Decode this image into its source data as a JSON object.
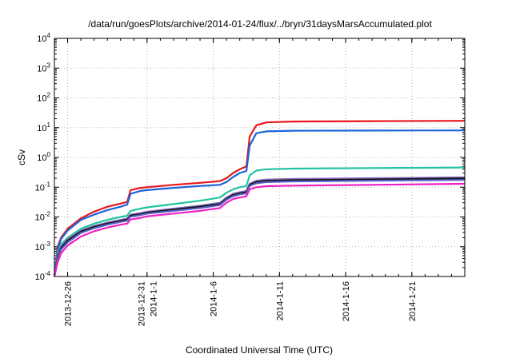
{
  "chart_data": {
    "type": "line",
    "title": "/data/run/goesPlots/archive/2014-01-24/flux/../bryn/31daysMarsAccumulated.plot",
    "xlabel": "Coordinated Universal Time (UTC)",
    "ylabel": "cSv",
    "yscale": "log",
    "ylim": [
      0.0001,
      10000
    ],
    "xlim": [
      "2013-12-25",
      "2014-01-25"
    ],
    "grid": true,
    "y_ticks": [
      {
        "value": 0.0001,
        "base": "10",
        "exp": "-4"
      },
      {
        "value": 0.001,
        "base": "10",
        "exp": "-3"
      },
      {
        "value": 0.01,
        "base": "10",
        "exp": "-2"
      },
      {
        "value": 0.1,
        "base": "10",
        "exp": "-1"
      },
      {
        "value": 1,
        "base": "10",
        "exp": "0"
      },
      {
        "value": 10,
        "base": "10",
        "exp": "1"
      },
      {
        "value": 100,
        "base": "10",
        "exp": "2"
      },
      {
        "value": 1000,
        "base": "10",
        "exp": "3"
      },
      {
        "value": 10000,
        "base": "10",
        "exp": "4"
      }
    ],
    "x_ticks": [
      {
        "value": "2013-12-26",
        "lines": [
          "2013-12-26"
        ]
      },
      {
        "value": "2014-01-01",
        "lines": [
          "2013-12-31",
          "2014-1-1"
        ]
      },
      {
        "value": "2014-01-06",
        "lines": [
          "2014-1-6"
        ]
      },
      {
        "value": "2014-01-11",
        "lines": [
          "2014-1-11"
        ]
      },
      {
        "value": "2014-01-16",
        "lines": [
          "2014-1-16"
        ]
      },
      {
        "value": "2014-01-21",
        "lines": [
          "2014-1-21"
        ]
      }
    ],
    "series": [
      {
        "color": "#e8161b",
        "points": [
          [
            "2013-12-25",
            0.0001
          ],
          [
            "2013-12-25 06:00",
            0.001
          ],
          [
            "2013-12-25 12:00",
            0.002
          ],
          [
            "2013-12-26",
            0.004
          ],
          [
            "2013-12-27",
            0.009
          ],
          [
            "2013-12-28",
            0.015
          ],
          [
            "2013-12-29",
            0.022
          ],
          [
            "2013-12-30",
            0.028
          ],
          [
            "2013-12-30 12:00",
            0.032
          ],
          [
            "2013-12-30 18:00",
            0.08
          ],
          [
            "2013-12-31 12:00",
            0.095
          ],
          [
            "2014-01-01",
            0.1
          ],
          [
            "2014-01-03",
            0.12
          ],
          [
            "2014-01-05",
            0.14
          ],
          [
            "2014-01-06 12:00",
            0.16
          ],
          [
            "2014-01-07",
            0.2
          ],
          [
            "2014-01-07 12:00",
            0.3
          ],
          [
            "2014-01-08",
            0.4
          ],
          [
            "2014-01-08 12:00",
            0.5
          ],
          [
            "2014-01-08 18:00",
            5.0
          ],
          [
            "2014-01-09 06:00",
            12.0
          ],
          [
            "2014-01-10",
            15.0
          ],
          [
            "2014-01-12",
            16.0
          ],
          [
            "2014-01-18",
            16.5
          ],
          [
            "2014-01-25",
            17.0
          ]
        ]
      },
      {
        "color": "#1a63d8",
        "points": [
          [
            "2013-12-25",
            0.0001
          ],
          [
            "2013-12-25 06:00",
            0.0008
          ],
          [
            "2013-12-25 12:00",
            0.0018
          ],
          [
            "2013-12-26",
            0.0035
          ],
          [
            "2013-12-27",
            0.008
          ],
          [
            "2013-12-28",
            0.012
          ],
          [
            "2013-12-29",
            0.017
          ],
          [
            "2013-12-30",
            0.022
          ],
          [
            "2013-12-30 12:00",
            0.026
          ],
          [
            "2013-12-30 18:00",
            0.06
          ],
          [
            "2013-12-31 12:00",
            0.075
          ],
          [
            "2014-01-01",
            0.08
          ],
          [
            "2014-01-03",
            0.095
          ],
          [
            "2014-01-05",
            0.11
          ],
          [
            "2014-01-06 12:00",
            0.12
          ],
          [
            "2014-01-07",
            0.15
          ],
          [
            "2014-01-07 12:00",
            0.22
          ],
          [
            "2014-01-08",
            0.3
          ],
          [
            "2014-01-08 12:00",
            0.35
          ],
          [
            "2014-01-08 18:00",
            2.5
          ],
          [
            "2014-01-09 06:00",
            6.5
          ],
          [
            "2014-01-10",
            7.5
          ],
          [
            "2014-01-12",
            7.9
          ],
          [
            "2014-01-18",
            8.0
          ],
          [
            "2014-01-25",
            8.1
          ]
        ]
      },
      {
        "color": "#22c4a2",
        "points": [
          [
            "2013-12-25",
            0.0001
          ],
          [
            "2013-12-25 06:00",
            0.0006
          ],
          [
            "2013-12-25 12:00",
            0.0012
          ],
          [
            "2013-12-26",
            0.002
          ],
          [
            "2013-12-27",
            0.004
          ],
          [
            "2013-12-28",
            0.006
          ],
          [
            "2013-12-29",
            0.008
          ],
          [
            "2013-12-30",
            0.01
          ],
          [
            "2013-12-30 12:00",
            0.011
          ],
          [
            "2013-12-30 18:00",
            0.016
          ],
          [
            "2013-12-31 12:00",
            0.019
          ],
          [
            "2014-01-01",
            0.021
          ],
          [
            "2014-01-03",
            0.027
          ],
          [
            "2014-01-05",
            0.035
          ],
          [
            "2014-01-06 12:00",
            0.045
          ],
          [
            "2014-01-07",
            0.065
          ],
          [
            "2014-01-07 12:00",
            0.085
          ],
          [
            "2014-01-08",
            0.1
          ],
          [
            "2014-01-08 12:00",
            0.11
          ],
          [
            "2014-01-08 18:00",
            0.25
          ],
          [
            "2014-01-09 06:00",
            0.36
          ],
          [
            "2014-01-10",
            0.4
          ],
          [
            "2014-01-12",
            0.42
          ],
          [
            "2014-01-18",
            0.44
          ],
          [
            "2014-01-25",
            0.46
          ]
        ]
      },
      {
        "color": "#8a6fc0",
        "points": [
          [
            "2013-12-25",
            0.0001
          ],
          [
            "2013-12-25 06:00",
            0.0005
          ],
          [
            "2013-12-25 12:00",
            0.001
          ],
          [
            "2013-12-26",
            0.0018
          ],
          [
            "2013-12-27",
            0.0035
          ],
          [
            "2013-12-28",
            0.005
          ],
          [
            "2013-12-29",
            0.0065
          ],
          [
            "2013-12-30",
            0.008
          ],
          [
            "2013-12-30 12:00",
            0.0088
          ],
          [
            "2013-12-30 18:00",
            0.012
          ],
          [
            "2013-12-31 12:00",
            0.0135
          ],
          [
            "2014-01-01",
            0.015
          ],
          [
            "2014-01-03",
            0.019
          ],
          [
            "2014-01-05",
            0.024
          ],
          [
            "2014-01-06 12:00",
            0.03
          ],
          [
            "2014-01-07",
            0.045
          ],
          [
            "2014-01-07 12:00",
            0.06
          ],
          [
            "2014-01-08",
            0.068
          ],
          [
            "2014-01-08 12:00",
            0.075
          ],
          [
            "2014-01-08 18:00",
            0.13
          ],
          [
            "2014-01-09 06:00",
            0.165
          ],
          [
            "2014-01-10",
            0.18
          ],
          [
            "2014-01-12",
            0.19
          ],
          [
            "2014-01-18",
            0.2
          ],
          [
            "2014-01-25",
            0.215
          ]
        ]
      },
      {
        "color": "#111111",
        "points": [
          [
            "2013-12-25",
            0.0001
          ],
          [
            "2013-12-25 06:00",
            0.00045
          ],
          [
            "2013-12-25 12:00",
            0.0009
          ],
          [
            "2013-12-26",
            0.0016
          ],
          [
            "2013-12-27",
            0.0032
          ],
          [
            "2013-12-28",
            0.0046
          ],
          [
            "2013-12-29",
            0.006
          ],
          [
            "2013-12-30",
            0.0074
          ],
          [
            "2013-12-30 12:00",
            0.0082
          ],
          [
            "2013-12-30 18:00",
            0.011
          ],
          [
            "2013-12-31 12:00",
            0.0125
          ],
          [
            "2014-01-01",
            0.014
          ],
          [
            "2014-01-03",
            0.0175
          ],
          [
            "2014-01-05",
            0.022
          ],
          [
            "2014-01-06 12:00",
            0.027
          ],
          [
            "2014-01-07",
            0.041
          ],
          [
            "2014-01-07 12:00",
            0.055
          ],
          [
            "2014-01-08",
            0.062
          ],
          [
            "2014-01-08 12:00",
            0.068
          ],
          [
            "2014-01-08 18:00",
            0.12
          ],
          [
            "2014-01-09 06:00",
            0.15
          ],
          [
            "2014-01-10",
            0.162
          ],
          [
            "2014-01-12",
            0.172
          ],
          [
            "2014-01-18",
            0.182
          ],
          [
            "2014-01-25",
            0.195
          ]
        ]
      },
      {
        "color": "#5b5fc8",
        "points": [
          [
            "2013-12-25",
            0.0001
          ],
          [
            "2013-12-25 06:00",
            0.0004
          ],
          [
            "2013-12-25 12:00",
            0.0008
          ],
          [
            "2013-12-26",
            0.0014
          ],
          [
            "2013-12-27",
            0.0029
          ],
          [
            "2013-12-28",
            0.0042
          ],
          [
            "2013-12-29",
            0.0055
          ],
          [
            "2013-12-30",
            0.0068
          ],
          [
            "2013-12-30 12:00",
            0.0075
          ],
          [
            "2013-12-30 18:00",
            0.0102
          ],
          [
            "2013-12-31 12:00",
            0.0115
          ],
          [
            "2014-01-01",
            0.013
          ],
          [
            "2014-01-03",
            0.016
          ],
          [
            "2014-01-05",
            0.02
          ],
          [
            "2014-01-06 12:00",
            0.025
          ],
          [
            "2014-01-07",
            0.038
          ],
          [
            "2014-01-07 12:00",
            0.05
          ],
          [
            "2014-01-08",
            0.057
          ],
          [
            "2014-01-08 12:00",
            0.062
          ],
          [
            "2014-01-08 18:00",
            0.11
          ],
          [
            "2014-01-09 06:00",
            0.135
          ],
          [
            "2014-01-10",
            0.148
          ],
          [
            "2014-01-12",
            0.157
          ],
          [
            "2014-01-18",
            0.165
          ],
          [
            "2014-01-25",
            0.175
          ]
        ]
      },
      {
        "color": "#ee1fc4",
        "points": [
          [
            "2013-12-25",
            0.0001
          ],
          [
            "2013-12-25 06:00",
            0.0003
          ],
          [
            "2013-12-25 12:00",
            0.0006
          ],
          [
            "2013-12-26",
            0.0011
          ],
          [
            "2013-12-27",
            0.0022
          ],
          [
            "2013-12-28",
            0.0033
          ],
          [
            "2013-12-29",
            0.0044
          ],
          [
            "2013-12-30",
            0.0055
          ],
          [
            "2013-12-30 12:00",
            0.006
          ],
          [
            "2013-12-30 18:00",
            0.0082
          ],
          [
            "2013-12-31 12:00",
            0.0093
          ],
          [
            "2014-01-01",
            0.0105
          ],
          [
            "2014-01-03",
            0.013
          ],
          [
            "2014-01-05",
            0.016
          ],
          [
            "2014-01-06 12:00",
            0.02
          ],
          [
            "2014-01-07",
            0.03
          ],
          [
            "2014-01-07 12:00",
            0.04
          ],
          [
            "2014-01-08",
            0.045
          ],
          [
            "2014-01-08 12:00",
            0.05
          ],
          [
            "2014-01-08 18:00",
            0.085
          ],
          [
            "2014-01-09 06:00",
            0.1
          ],
          [
            "2014-01-10",
            0.108
          ],
          [
            "2014-01-12",
            0.113
          ],
          [
            "2014-01-18",
            0.12
          ],
          [
            "2014-01-25",
            0.13
          ]
        ]
      }
    ]
  }
}
